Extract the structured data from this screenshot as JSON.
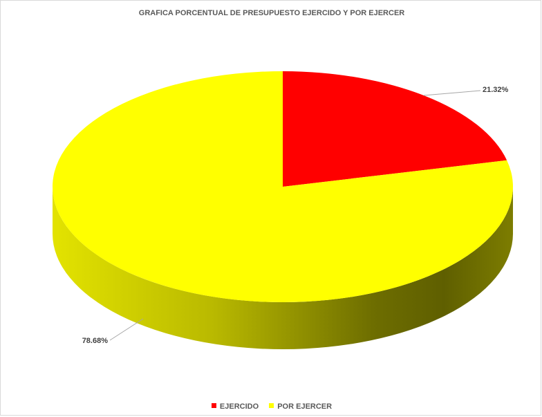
{
  "chart_data": {
    "type": "pie",
    "title": "GRAFICA PORCENTUAL DE PRESUPUESTO EJERCIDO Y POR EJERCER",
    "categories": [
      "EJERCIDO",
      "POR EJERCER"
    ],
    "values": [
      21.32,
      78.68
    ],
    "data_labels": [
      "21.32%",
      "78.68%"
    ],
    "colors": [
      "#ff0000",
      "#ffff00"
    ],
    "style": "3d",
    "legend_position": "bottom"
  }
}
